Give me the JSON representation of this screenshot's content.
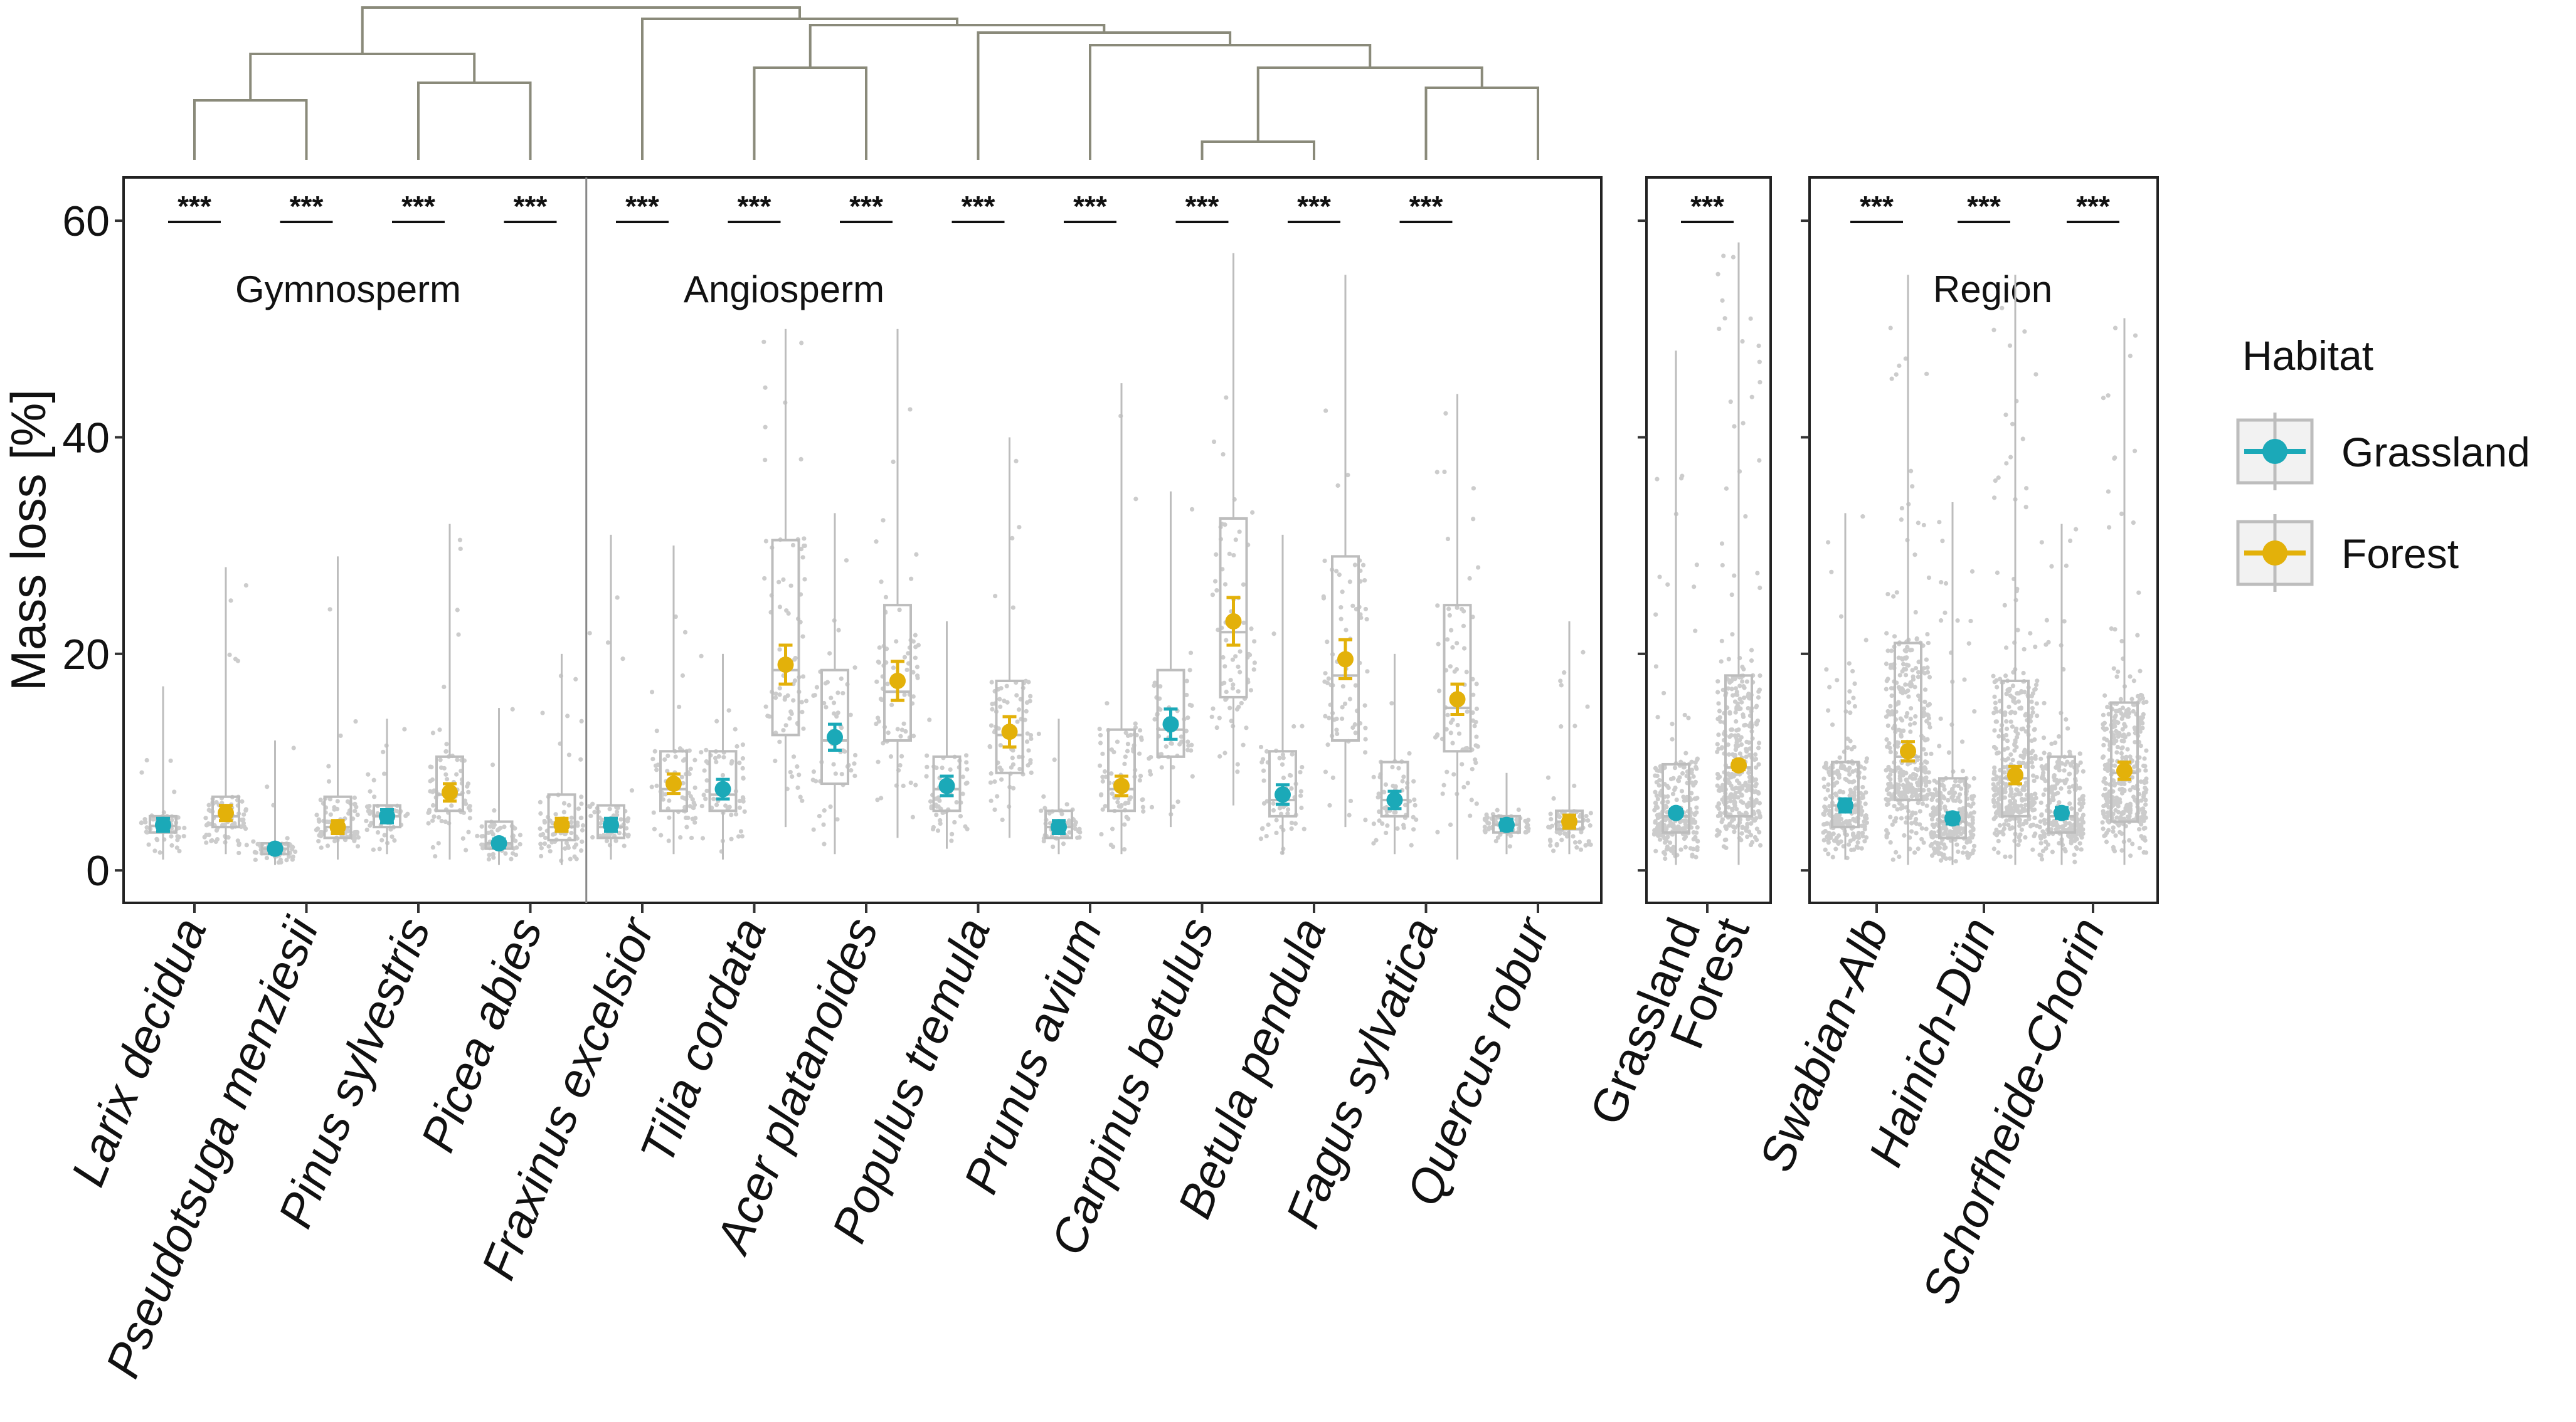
{
  "chart_data": {
    "type": "box",
    "ylabel": "Mass loss [%]",
    "ylim": [
      -3,
      64
    ],
    "yticks": [
      0,
      20,
      40,
      60
    ],
    "colors": {
      "Grassland": "#1ba9b8",
      "Forest": "#e3b10a",
      "box": "#bdbdbd",
      "points": "#cccccc"
    },
    "legend": {
      "title": "Habitat",
      "position": "right",
      "items": [
        {
          "name": "Grassland",
          "color": "#1ba9b8"
        },
        {
          "name": "Forest",
          "color": "#e3b10a"
        }
      ]
    },
    "panels": [
      {
        "id": "species",
        "group_labels": [
          {
            "text": "Gymnosperm",
            "after_category": 1.5
          },
          {
            "text": "Angiosperm",
            "after_category": 5.5
          }
        ],
        "divider_after_index": 3,
        "categories": [
          {
            "name": "Larix decidua",
            "sig": "***",
            "grassland": {
              "mean": 4.2,
              "err": 0.6,
              "q1": 3.5,
              "median": 4.1,
              "q3": 5.0,
              "lo": 1.0,
              "hi": 17.0
            },
            "forest": {
              "mean": 5.3,
              "err": 0.7,
              "q1": 4.0,
              "median": 5.0,
              "q3": 6.8,
              "lo": 1.5,
              "hi": 28.0
            }
          },
          {
            "name": "Pseudotsuga menziesii",
            "sig": "***",
            "grassland": {
              "mean": 2.0,
              "err": 0.4,
              "q1": 1.5,
              "median": 2.0,
              "q3": 2.5,
              "lo": 0.5,
              "hi": 12.0
            },
            "forest": {
              "mean": 4.0,
              "err": 0.6,
              "q1": 3.0,
              "median": 4.0,
              "q3": 6.8,
              "lo": 1.0,
              "hi": 29.0
            }
          },
          {
            "name": "Pinus sylvestris",
            "sig": "***",
            "grassland": {
              "mean": 5.0,
              "err": 0.6,
              "q1": 4.0,
              "median": 5.0,
              "q3": 6.0,
              "lo": 1.5,
              "hi": 14.0
            },
            "forest": {
              "mean": 7.2,
              "err": 0.8,
              "q1": 5.5,
              "median": 7.0,
              "q3": 10.5,
              "lo": 1.0,
              "hi": 32.0
            }
          },
          {
            "name": "Picea abies",
            "sig": "***",
            "grassland": {
              "mean": 2.5,
              "err": 0.4,
              "q1": 2.0,
              "median": 2.5,
              "q3": 4.5,
              "lo": 0.5,
              "hi": 15.0
            },
            "forest": {
              "mean": 4.2,
              "err": 0.6,
              "q1": 2.8,
              "median": 4.0,
              "q3": 7.0,
              "lo": 0.5,
              "hi": 20.0
            }
          },
          {
            "name": "Fraxinus excelsior",
            "sig": "***",
            "grassland": {
              "mean": 4.2,
              "err": 0.6,
              "q1": 3.0,
              "median": 4.0,
              "q3": 6.0,
              "lo": 1.0,
              "hi": 31.0
            },
            "forest": {
              "mean": 8.0,
              "err": 0.9,
              "q1": 5.5,
              "median": 7.5,
              "q3": 11.0,
              "lo": 1.5,
              "hi": 30.0
            }
          },
          {
            "name": "Tilia cordata",
            "sig": "***",
            "grassland": {
              "mean": 7.5,
              "err": 0.9,
              "q1": 5.5,
              "median": 7.0,
              "q3": 11.0,
              "lo": 1.0,
              "hi": 20.0
            },
            "forest": {
              "mean": 19.0,
              "err": 1.8,
              "q1": 12.5,
              "median": 18.5,
              "q3": 30.5,
              "lo": 4.0,
              "hi": 50.0
            }
          },
          {
            "name": "Acer platanoides",
            "sig": "***",
            "grassland": {
              "mean": 12.3,
              "err": 1.2,
              "q1": 8.0,
              "median": 12.0,
              "q3": 18.5,
              "lo": 1.5,
              "hi": 33.0
            },
            "forest": {
              "mean": 17.5,
              "err": 1.8,
              "q1": 12.0,
              "median": 16.5,
              "q3": 24.5,
              "lo": 3.0,
              "hi": 50.0
            }
          },
          {
            "name": "Populus tremula",
            "sig": "***",
            "grassland": {
              "mean": 7.8,
              "err": 0.9,
              "q1": 5.5,
              "median": 7.5,
              "q3": 10.5,
              "lo": 2.0,
              "hi": 23.0
            },
            "forest": {
              "mean": 12.8,
              "err": 1.4,
              "q1": 9.0,
              "median": 12.5,
              "q3": 17.5,
              "lo": 3.0,
              "hi": 40.0
            }
          },
          {
            "name": "Prunus avium",
            "sig": "***",
            "grassland": {
              "mean": 4.0,
              "err": 0.6,
              "q1": 3.0,
              "median": 4.0,
              "q3": 5.5,
              "lo": 1.5,
              "hi": 14.0
            },
            "forest": {
              "mean": 7.8,
              "err": 0.9,
              "q1": 5.5,
              "median": 7.5,
              "q3": 13.0,
              "lo": 1.5,
              "hi": 45.0
            }
          },
          {
            "name": "Carpinus betulus",
            "sig": "***",
            "grassland": {
              "mean": 13.5,
              "err": 1.4,
              "q1": 10.5,
              "median": 13.0,
              "q3": 18.5,
              "lo": 4.0,
              "hi": 35.0
            },
            "forest": {
              "mean": 23.0,
              "err": 2.2,
              "q1": 16.0,
              "median": 22.0,
              "q3": 32.5,
              "lo": 6.0,
              "hi": 57.0
            }
          },
          {
            "name": "Betula pendula",
            "sig": "***",
            "grassland": {
              "mean": 7.0,
              "err": 0.9,
              "q1": 5.0,
              "median": 6.5,
              "q3": 11.0,
              "lo": 1.5,
              "hi": 31.0
            },
            "forest": {
              "mean": 19.5,
              "err": 1.8,
              "q1": 12.0,
              "median": 18.0,
              "q3": 29.0,
              "lo": 4.0,
              "hi": 55.0
            }
          },
          {
            "name": "Fagus sylvatica",
            "sig": "***",
            "grassland": {
              "mean": 6.5,
              "err": 0.8,
              "q1": 5.0,
              "median": 6.5,
              "q3": 10.0,
              "lo": 1.5,
              "hi": 20.0
            },
            "forest": {
              "mean": 15.8,
              "err": 1.4,
              "q1": 11.0,
              "median": 15.0,
              "q3": 24.5,
              "lo": 1.0,
              "hi": 44.0
            }
          },
          {
            "name": "Quercus robur",
            "sig": "",
            "grassland": {
              "mean": 4.2,
              "err": 0.5,
              "q1": 3.5,
              "median": 4.2,
              "q3": 5.0,
              "lo": 1.5,
              "hi": 9.0
            },
            "forest": {
              "mean": 4.5,
              "err": 0.6,
              "q1": 3.8,
              "median": 4.5,
              "q3": 5.5,
              "lo": 1.5,
              "hi": 23.0
            }
          }
        ]
      },
      {
        "id": "habitat",
        "categories": [
          {
            "name": "Grassland",
            "sig": "***",
            "pair": true,
            "grassland": {
              "mean": 5.3,
              "err": 0.3,
              "q1": 3.5,
              "median": 5.0,
              "q3": 9.8,
              "lo": 0.5,
              "hi": 48.0
            },
            "forest": {
              "mean": 9.7,
              "err": 0.4,
              "q1": 5.0,
              "median": 9.5,
              "q3": 18.0,
              "lo": 0.5,
              "hi": 58.0
            }
          }
        ],
        "x_labels": [
          "Grassland",
          "Forest"
        ]
      },
      {
        "id": "region",
        "group_labels": [
          {
            "text": "Region",
            "after_category": 1
          }
        ],
        "categories": [
          {
            "name": "Swabian-Alb",
            "sig": "***",
            "grassland": {
              "mean": 6.0,
              "err": 0.6,
              "q1": 4.0,
              "median": 6.0,
              "q3": 10.0,
              "lo": 1.0,
              "hi": 33.0
            },
            "forest": {
              "mean": 11.0,
              "err": 0.9,
              "q1": 6.5,
              "median": 10.5,
              "q3": 21.0,
              "lo": 0.5,
              "hi": 55.0
            }
          },
          {
            "name": "Hainich-Dün",
            "sig": "***",
            "grassland": {
              "mean": 4.8,
              "err": 0.5,
              "q1": 3.0,
              "median": 4.5,
              "q3": 8.5,
              "lo": 0.5,
              "hi": 34.0
            },
            "forest": {
              "mean": 8.8,
              "err": 0.8,
              "q1": 5.0,
              "median": 8.5,
              "q3": 17.5,
              "lo": 0.5,
              "hi": 55.0
            }
          },
          {
            "name": "Schorfheide-Chorin",
            "sig": "***",
            "grassland": {
              "mean": 5.3,
              "err": 0.5,
              "q1": 3.5,
              "median": 5.0,
              "q3": 10.5,
              "lo": 0.5,
              "hi": 32.0
            },
            "forest": {
              "mean": 9.2,
              "err": 0.8,
              "q1": 4.5,
              "median": 9.0,
              "q3": 15.5,
              "lo": 0.5,
              "hi": 51.0
            }
          }
        ]
      }
    ]
  }
}
